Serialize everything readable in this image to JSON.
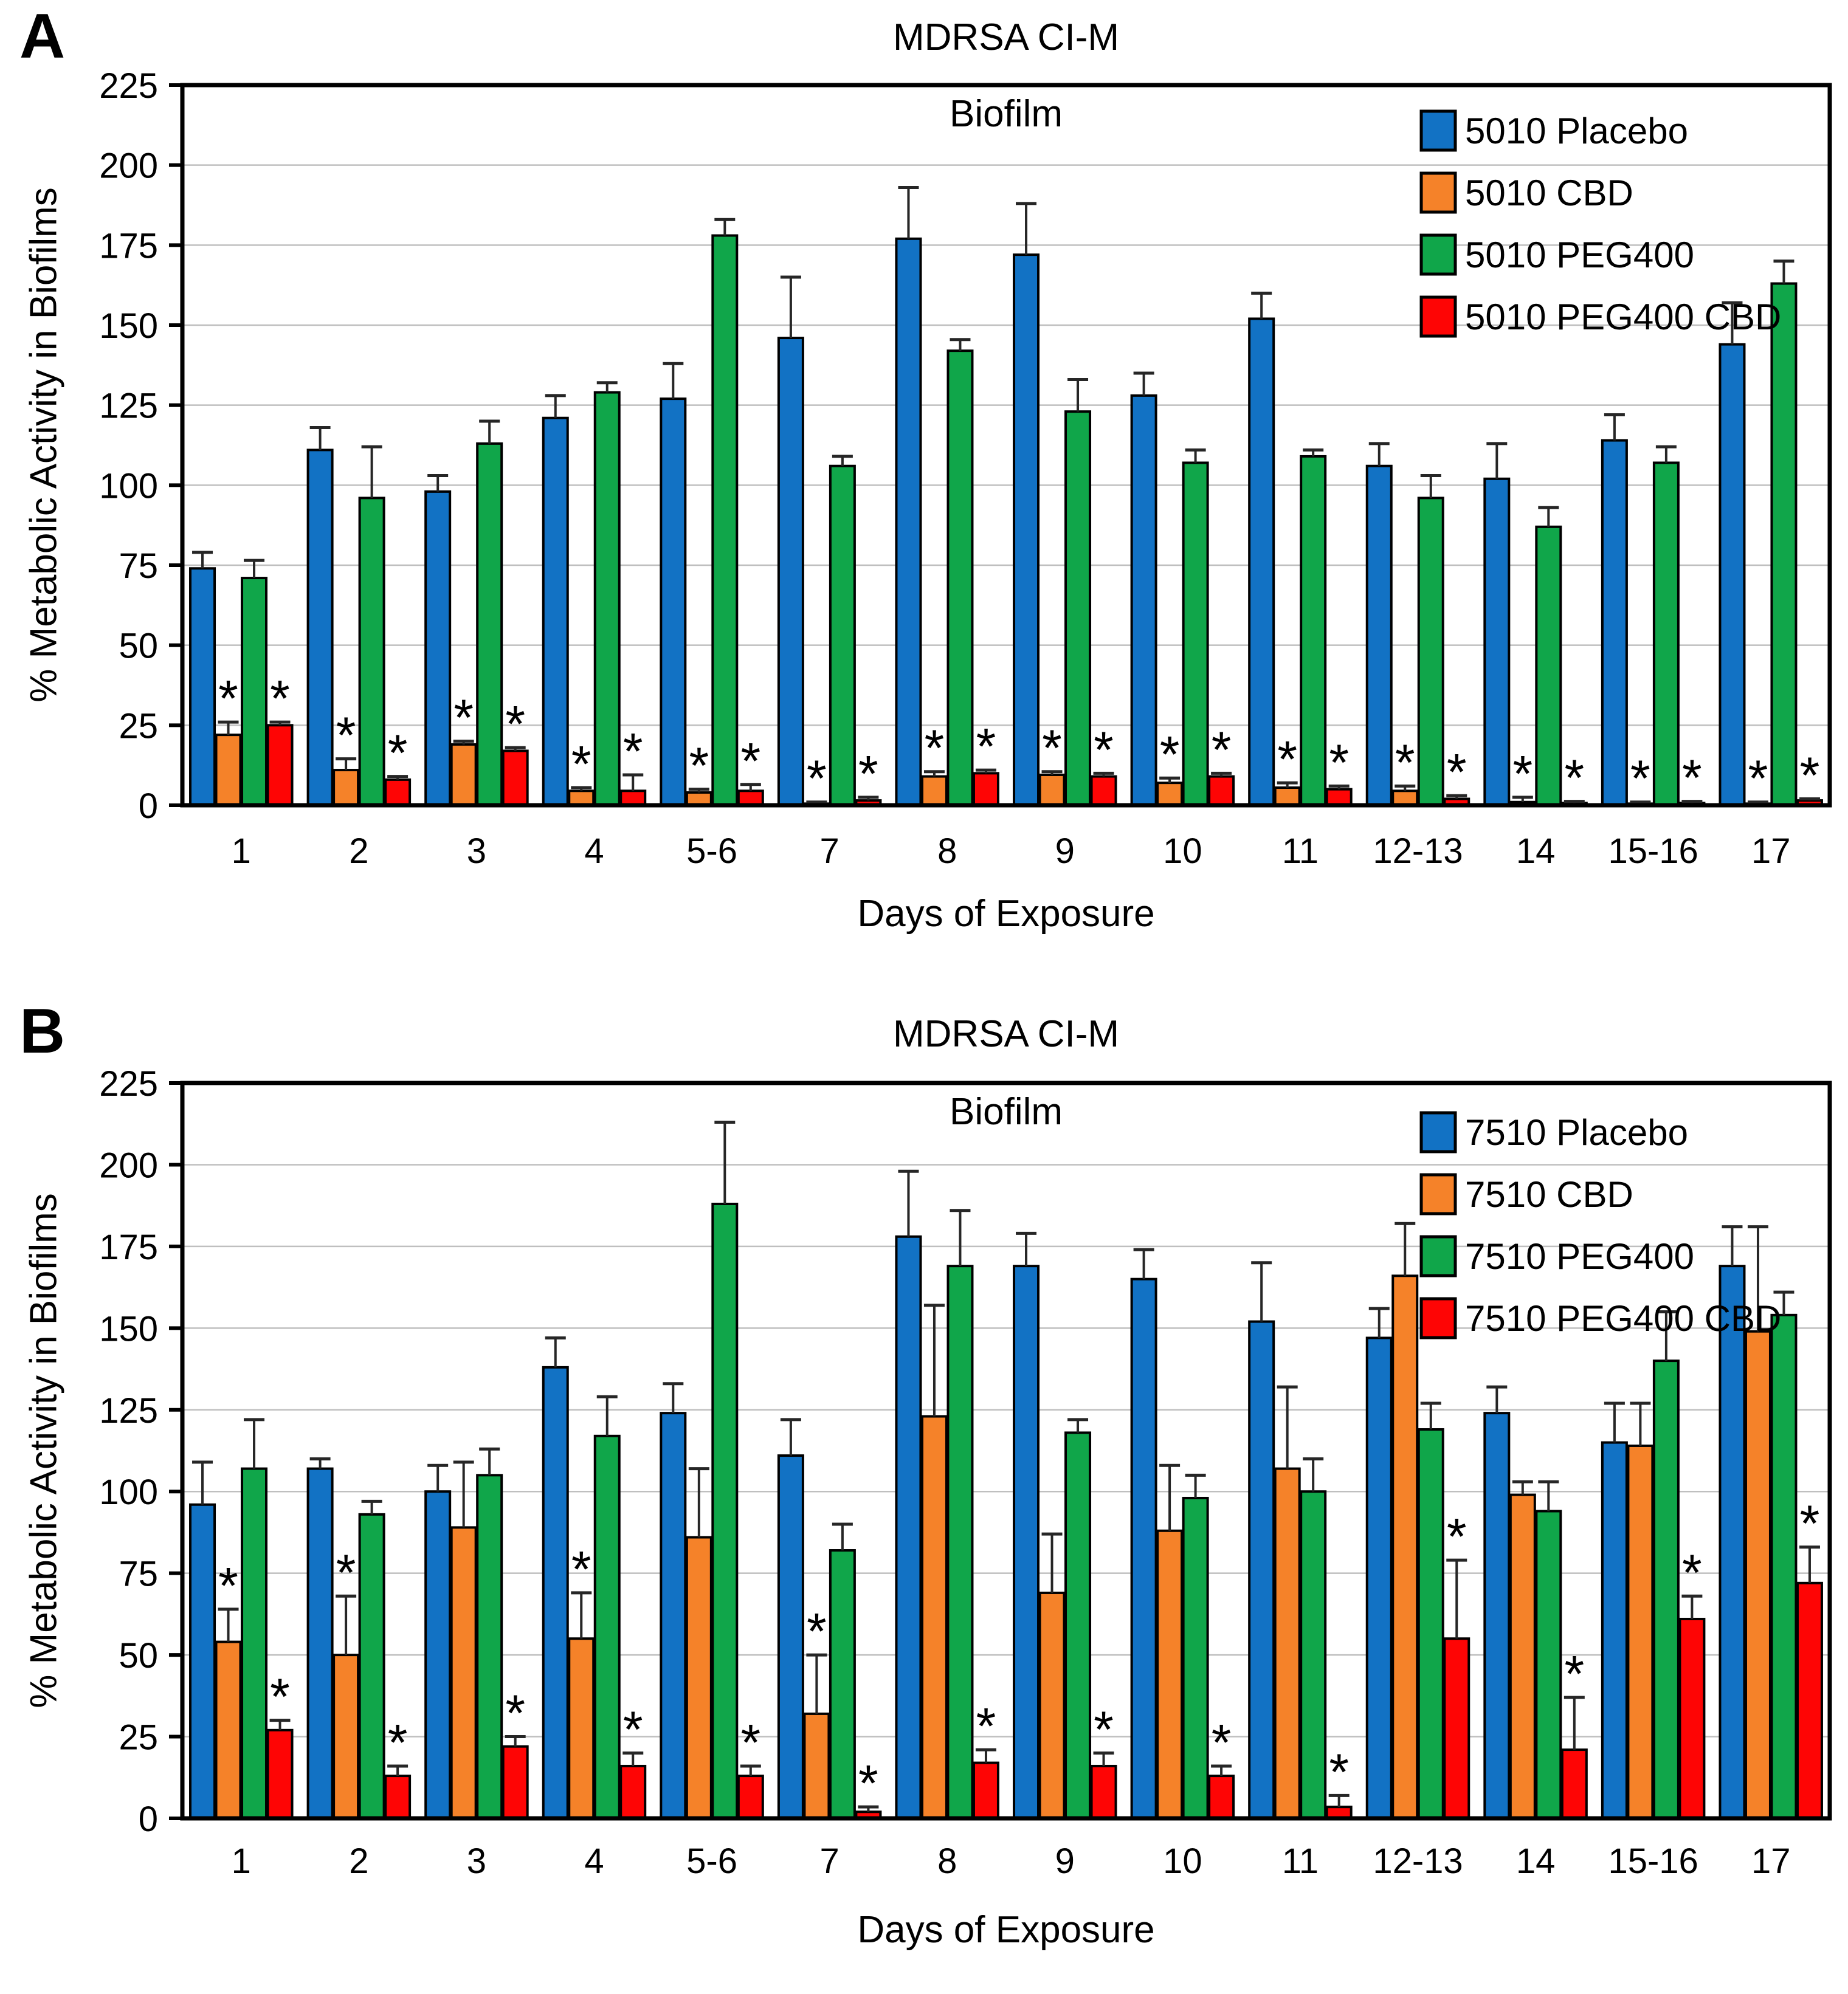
{
  "chart_data": [
    {
      "type": "bar",
      "panel_letter": "A",
      "title": "MDRSA CI-M",
      "subtitle": "Biofilm",
      "xlabel": "Days of Exposure",
      "ylabel": "% Metabolic Activity in Biofilms",
      "ylim": [
        0,
        225
      ],
      "ytick_step": 25,
      "grid": true,
      "legend_position": "top-right",
      "error_bars": true,
      "significance_marker": "*",
      "categories": [
        "1",
        "2",
        "3",
        "4",
        "5-6",
        "7",
        "8",
        "9",
        "10",
        "11",
        "12-13",
        "14",
        "15-16",
        "17"
      ],
      "series": [
        {
          "name": "5010 Placebo",
          "color": "#1272C4",
          "values": [
            74,
            111,
            98,
            121,
            127,
            146,
            177,
            172,
            128,
            152,
            106,
            102,
            114,
            144
          ],
          "errors": [
            5,
            7,
            5,
            7,
            11,
            19,
            16,
            16,
            7,
            8,
            7,
            11,
            8,
            13
          ],
          "stars": [
            false,
            false,
            false,
            false,
            false,
            false,
            false,
            false,
            false,
            false,
            false,
            false,
            false,
            false
          ]
        },
        {
          "name": "5010 CBD",
          "color": "#F58229",
          "values": [
            22,
            11,
            19,
            4.5,
            4,
            0.5,
            9,
            9.5,
            7,
            5.5,
            4.5,
            1,
            0.5,
            0.5
          ],
          "errors": [
            4,
            3.5,
            1,
            1,
            1,
            0.5,
            1.5,
            1,
            1.5,
            1.5,
            1.5,
            1.5,
            0.5,
            0.5
          ],
          "stars": [
            true,
            true,
            true,
            true,
            true,
            true,
            true,
            true,
            true,
            true,
            true,
            true,
            true,
            true
          ]
        },
        {
          "name": "5010 PEG400",
          "color": "#10A64A",
          "values": [
            71,
            96,
            113,
            129,
            178,
            106,
            142,
            123,
            107,
            109,
            96,
            87,
            107,
            163
          ],
          "errors": [
            5.5,
            16,
            7,
            3,
            5,
            3,
            3.5,
            10,
            4,
            2,
            7,
            6,
            5,
            7
          ],
          "stars": [
            false,
            false,
            false,
            false,
            false,
            false,
            false,
            false,
            false,
            false,
            false,
            false,
            false,
            false
          ]
        },
        {
          "name": "5010 PEG400 CBD",
          "color": "#FE0505",
          "values": [
            25,
            8,
            17,
            4.5,
            4.5,
            1.5,
            10,
            9,
            9,
            5,
            2,
            0.7,
            0.7,
            1.5
          ],
          "errors": [
            1,
            1,
            1,
            5,
            2,
            1,
            1,
            1,
            1,
            1,
            1,
            0.5,
            0.5,
            0.5
          ],
          "stars": [
            true,
            true,
            true,
            true,
            true,
            true,
            true,
            true,
            true,
            true,
            true,
            true,
            true,
            true
          ]
        }
      ]
    },
    {
      "type": "bar",
      "panel_letter": "B",
      "title": "MDRSA CI-M",
      "subtitle": "Biofilm",
      "xlabel": "Days of Exposure",
      "ylabel": "% Metabolic Activity in Biofilms",
      "ylim": [
        0,
        225
      ],
      "ytick_step": 25,
      "grid": true,
      "legend_position": "top-right",
      "error_bars": true,
      "significance_marker": "*",
      "categories": [
        "1",
        "2",
        "3",
        "4",
        "5-6",
        "7",
        "8",
        "9",
        "10",
        "11",
        "12-13",
        "14",
        "15-16",
        "17"
      ],
      "series": [
        {
          "name": "7510 Placebo",
          "color": "#1272C4",
          "values": [
            96,
            107,
            100,
            138,
            124,
            111,
            178,
            169,
            165,
            152,
            147,
            124,
            115,
            169
          ],
          "errors": [
            13,
            3,
            8,
            9,
            9,
            11,
            20,
            10,
            9,
            18,
            9,
            8,
            12,
            12
          ],
          "stars": [
            false,
            false,
            false,
            false,
            false,
            false,
            false,
            false,
            false,
            false,
            false,
            false,
            false,
            false
          ]
        },
        {
          "name": "7510 CBD",
          "color": "#F58229",
          "values": [
            54,
            50,
            89,
            55,
            86,
            32,
            123,
            69,
            88,
            107,
            166,
            99,
            114,
            149
          ],
          "errors": [
            10,
            18,
            20,
            14,
            21,
            18,
            34,
            18,
            20,
            25,
            16,
            4,
            13,
            32
          ],
          "stars": [
            true,
            true,
            false,
            true,
            false,
            true,
            false,
            false,
            false,
            false,
            false,
            false,
            false,
            false
          ]
        },
        {
          "name": "7510 PEG400",
          "color": "#10A64A",
          "values": [
            107,
            93,
            105,
            117,
            188,
            82,
            169,
            118,
            98,
            100,
            119,
            94,
            140,
            154
          ],
          "errors": [
            15,
            4,
            8,
            12,
            25,
            8,
            17,
            4,
            7,
            10,
            8,
            9,
            15,
            7
          ],
          "stars": [
            false,
            false,
            false,
            false,
            false,
            false,
            false,
            false,
            false,
            false,
            false,
            false,
            false,
            false
          ]
        },
        {
          "name": "7510 PEG400 CBD",
          "color": "#FE0505",
          "values": [
            27,
            13,
            22,
            16,
            13,
            2,
            17,
            16,
            13,
            3.5,
            55,
            21,
            61,
            72
          ],
          "errors": [
            3,
            3,
            3,
            4,
            3,
            1.5,
            4,
            4,
            3,
            3.5,
            24,
            16,
            7,
            11
          ],
          "stars": [
            true,
            true,
            true,
            true,
            true,
            true,
            true,
            true,
            true,
            true,
            true,
            true,
            true,
            true
          ]
        }
      ]
    }
  ],
  "style": {
    "bar_stroke": "#000000",
    "error_bar_color": "#262626",
    "gridline_color": "#BFBFBF",
    "axis_color": "#000000",
    "background": "#FFFFFF"
  }
}
